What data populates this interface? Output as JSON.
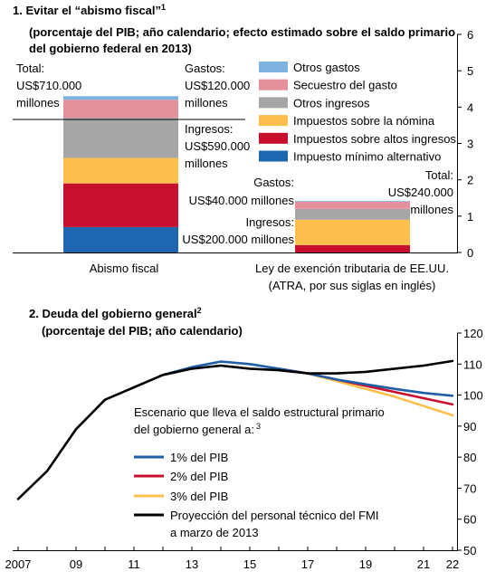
{
  "chart_data": [
    {
      "type": "bar",
      "title": "1. Evitar el “abismo fiscal”",
      "title_sup": "1",
      "subtitle_line1": "(porcentaje del PIB; año calendario; efecto estimado sobre el saldo primario",
      "subtitle_line2": "del gobierno federal en 2013)",
      "stacked": true,
      "categories": [
        "Abismo fiscal",
        "Ley de exención tributaria de EE.UU."
      ],
      "category_sublabels": [
        "",
        "(ATRA, por sus siglas en inglés)"
      ],
      "ylim": [
        0,
        6
      ],
      "yticks": [
        "0",
        "1",
        "2",
        "3",
        "4",
        "5",
        "6"
      ],
      "axis_side": "right",
      "series": [
        {
          "name": "Impuesto mínimo alternativo",
          "color": "#1f66b0",
          "values": [
            0.7,
            0.0
          ]
        },
        {
          "name": "Impuestos sobre altos ingresos",
          "color": "#c8102e",
          "values": [
            1.2,
            0.2
          ]
        },
        {
          "name": "Impuestos sobre la nómina",
          "color": "#ffbf4d",
          "values": [
            0.7,
            0.7
          ]
        },
        {
          "name": "Otros ingresos",
          "color": "#a6a6a6",
          "values": [
            1.1,
            0.3
          ]
        },
        {
          "name": "Secuestro del gasto",
          "color": "#e3909a",
          "values": [
            0.5,
            0.2
          ]
        },
        {
          "name": "Otros gastos",
          "color": "#7eb2e0",
          "values": [
            0.1,
            0.02
          ]
        }
      ],
      "legend_order": [
        "Otros gastos",
        "Secuestro del gasto",
        "Otros ingresos",
        "Impuestos sobre la nómina",
        "Impuestos sobre altos ingresos",
        "Impuesto mínimo alternativo"
      ],
      "annotations": {
        "bar1_total": [
          "Total:",
          "US$710.000",
          "millones"
        ],
        "bar1_gastos": [
          "Gastos:",
          "US$120.000",
          "millones"
        ],
        "bar1_ingresos": [
          "Ingresos:",
          "US$590.000",
          "millones"
        ],
        "bar2_gastos": [
          "Gastos:",
          "US$40.000 millones"
        ],
        "bar2_ingresos": [
          "Ingresos:",
          "US$200.000 millones"
        ],
        "bar2_total": [
          "Total:",
          "US$240.000",
          "millones"
        ]
      }
    },
    {
      "type": "line",
      "title": "2. Deuda del gobierno general",
      "title_sup": "2",
      "subtitle": "(porcentaje del PIB; año calendario)",
      "xlim": [
        2007,
        2022
      ],
      "ylim": [
        50,
        120
      ],
      "xticks": [
        {
          "value": 2007,
          "label": "2007"
        },
        {
          "value": 2009,
          "label": "09"
        },
        {
          "value": 2011,
          "label": "11"
        },
        {
          "value": 2013,
          "label": "13"
        },
        {
          "value": 2015,
          "label": "15"
        },
        {
          "value": 2017,
          "label": "17"
        },
        {
          "value": 2019,
          "label": "19"
        },
        {
          "value": 2021,
          "label": "21"
        },
        {
          "value": 2022,
          "label": "22"
        }
      ],
      "yticks": [
        "50",
        "60",
        "70",
        "80",
        "90",
        "100",
        "110",
        "120"
      ],
      "axis_side": "right",
      "legend_title_line1": "Escenario que lleva el saldo estructural primario",
      "legend_title_line2": "del gobierno general a:",
      "legend_title_sup": "3",
      "series": [
        {
          "name": "1% del PIB",
          "color": "#1f5fa6",
          "x": [
            2016,
            2017,
            2018,
            2019,
            2020,
            2021,
            2022
          ],
          "values": [
            108.5,
            107.0,
            105.0,
            103.5,
            102.0,
            100.7,
            99.8
          ]
        },
        {
          "name": "2% del PIB",
          "color": "#c8102e",
          "x": [
            2016,
            2017,
            2018,
            2019,
            2020,
            2021,
            2022
          ],
          "values": [
            108.5,
            107.0,
            105.0,
            103.0,
            101.0,
            99.0,
            97.0
          ]
        },
        {
          "name": "3% del PIB",
          "color": "#ffbf4d",
          "x": [
            2016,
            2017,
            2018,
            2019,
            2020,
            2021,
            2022
          ],
          "values": [
            108.5,
            107.0,
            104.5,
            102.0,
            99.5,
            96.5,
            93.5
          ]
        },
        {
          "name": "Proyección del personal técnico del FMI a marzo de 2013",
          "name_line1": "Proyección del personal técnico del FMI",
          "name_line2": "a marzo de 2013",
          "color": "#000000",
          "x": [
            2007,
            2008,
            2009,
            2010,
            2011,
            2012,
            2013,
            2014,
            2015,
            2016,
            2017,
            2018,
            2019,
            2020,
            2021,
            2022
          ],
          "values": [
            66.5,
            75.5,
            89.0,
            98.5,
            102.5,
            106.5,
            108.5,
            109.5,
            108.5,
            108.0,
            107.0,
            107.0,
            107.5,
            108.5,
            109.5,
            111.0
          ]
        }
      ],
      "extra_lines": [
        {
          "color": "#1f5fa6",
          "x": [
            2012,
            2013,
            2014,
            2015,
            2016
          ],
          "values": [
            106.5,
            109.0,
            110.8,
            110.0,
            108.5
          ]
        }
      ]
    }
  ]
}
